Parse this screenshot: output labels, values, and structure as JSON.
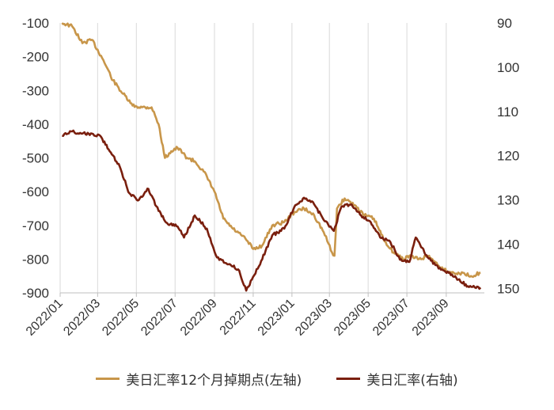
{
  "chart_data": {
    "type": "line",
    "title": "",
    "y_left": {
      "ticks": [
        "-100",
        "-200",
        "-300",
        "-400",
        "-500",
        "-600",
        "-700",
        "-800",
        "-900"
      ],
      "range": [
        -900,
        -100
      ]
    },
    "y_right": {
      "ticks": [
        "90",
        "100",
        "110",
        "120",
        "130",
        "140",
        "150"
      ],
      "range": [
        90,
        151
      ]
    },
    "x_ticks": [
      "2022/01",
      "2022/03",
      "2022/05",
      "2022/07",
      "2022/09",
      "2022/11",
      "2023/01",
      "2023/03",
      "2023/05",
      "2023/07",
      "2023/09"
    ],
    "grid": "vertical",
    "legend_position": "bottom",
    "series": [
      {
        "name": "美日汇率12个月掉期点(左轴)",
        "axis": "left",
        "color": "#C8964A",
        "points": [
          [
            "2022-01-04",
            -100
          ],
          [
            "2022-01-20",
            -110
          ],
          [
            "2022-02-05",
            -160
          ],
          [
            "2022-02-20",
            -150
          ],
          [
            "2022-03-10",
            -210
          ],
          [
            "2022-03-25",
            -270
          ],
          [
            "2022-04-10",
            -310
          ],
          [
            "2022-04-25",
            -345
          ],
          [
            "2022-05-10",
            -350
          ],
          [
            "2022-05-25",
            -350
          ],
          [
            "2022-06-05",
            -400
          ],
          [
            "2022-06-15",
            -500
          ],
          [
            "2022-06-25",
            -480
          ],
          [
            "2022-07-05",
            -470
          ],
          [
            "2022-07-20",
            -500
          ],
          [
            "2022-08-01",
            -510
          ],
          [
            "2022-08-15",
            -540
          ],
          [
            "2022-09-01",
            -600
          ],
          [
            "2022-09-15",
            -680
          ],
          [
            "2022-09-30",
            -710
          ],
          [
            "2022-10-20",
            -740
          ],
          [
            "2022-11-01",
            -770
          ],
          [
            "2022-11-15",
            -760
          ],
          [
            "2022-12-01",
            -700
          ],
          [
            "2022-12-20",
            -690
          ],
          [
            "2023-01-05",
            -660
          ],
          [
            "2023-01-20",
            -650
          ],
          [
            "2023-02-05",
            -670
          ],
          [
            "2023-02-20",
            -720
          ],
          [
            "2023-03-05",
            -780
          ],
          [
            "2023-03-09",
            -790
          ],
          [
            "2023-03-13",
            -650
          ],
          [
            "2023-03-25",
            -620
          ],
          [
            "2023-04-10",
            -640
          ],
          [
            "2023-04-25",
            -670
          ],
          [
            "2023-05-10",
            -680
          ],
          [
            "2023-05-25",
            -740
          ],
          [
            "2023-06-10",
            -780
          ],
          [
            "2023-06-25",
            -800
          ],
          [
            "2023-07-05",
            -790
          ],
          [
            "2023-07-20",
            -800
          ],
          [
            "2023-08-05",
            -790
          ],
          [
            "2023-08-20",
            -820
          ],
          [
            "2023-09-05",
            -840
          ],
          [
            "2023-09-20",
            -840
          ],
          [
            "2023-10-10",
            -850
          ],
          [
            "2023-10-25",
            -840
          ]
        ]
      },
      {
        "name": "美日汇率(右轴)",
        "axis": "right",
        "color": "#7A1F0E",
        "points": [
          [
            "2022-01-04",
            115.5
          ],
          [
            "2022-01-20",
            114.5
          ],
          [
            "2022-02-05",
            115.0
          ],
          [
            "2022-02-20",
            115.0
          ],
          [
            "2022-03-05",
            115.5
          ],
          [
            "2022-03-20",
            119.0
          ],
          [
            "2022-04-05",
            122.5
          ],
          [
            "2022-04-20",
            128.5
          ],
          [
            "2022-05-05",
            130.0
          ],
          [
            "2022-05-20",
            127.5
          ],
          [
            "2022-06-05",
            132.5
          ],
          [
            "2022-06-20",
            135.5
          ],
          [
            "2022-07-05",
            136.0
          ],
          [
            "2022-07-15",
            138.5
          ],
          [
            "2022-08-01",
            133.5
          ],
          [
            "2022-08-20",
            136.5
          ],
          [
            "2022-09-05",
            143.0
          ],
          [
            "2022-09-25",
            144.5
          ],
          [
            "2022-10-10",
            146.0
          ],
          [
            "2022-10-21",
            150.5
          ],
          [
            "2022-11-10",
            145.0
          ],
          [
            "2022-12-01",
            138.0
          ],
          [
            "2022-12-20",
            136.5
          ],
          [
            "2023-01-05",
            131.5
          ],
          [
            "2023-01-20",
            129.5
          ],
          [
            "2023-02-05",
            131.0
          ],
          [
            "2023-02-20",
            134.5
          ],
          [
            "2023-03-08",
            137.0
          ],
          [
            "2023-03-20",
            131.5
          ],
          [
            "2023-04-05",
            131.0
          ],
          [
            "2023-04-20",
            133.5
          ],
          [
            "2023-05-05",
            135.0
          ],
          [
            "2023-05-20",
            138.5
          ],
          [
            "2023-06-05",
            139.5
          ],
          [
            "2023-06-20",
            143.5
          ],
          [
            "2023-07-05",
            144.0
          ],
          [
            "2023-07-15",
            138.5
          ],
          [
            "2023-08-01",
            142.5
          ],
          [
            "2023-08-20",
            145.5
          ],
          [
            "2023-09-05",
            146.5
          ],
          [
            "2023-09-20",
            148.0
          ],
          [
            "2023-10-05",
            149.5
          ],
          [
            "2023-10-25",
            149.8
          ]
        ]
      }
    ]
  }
}
